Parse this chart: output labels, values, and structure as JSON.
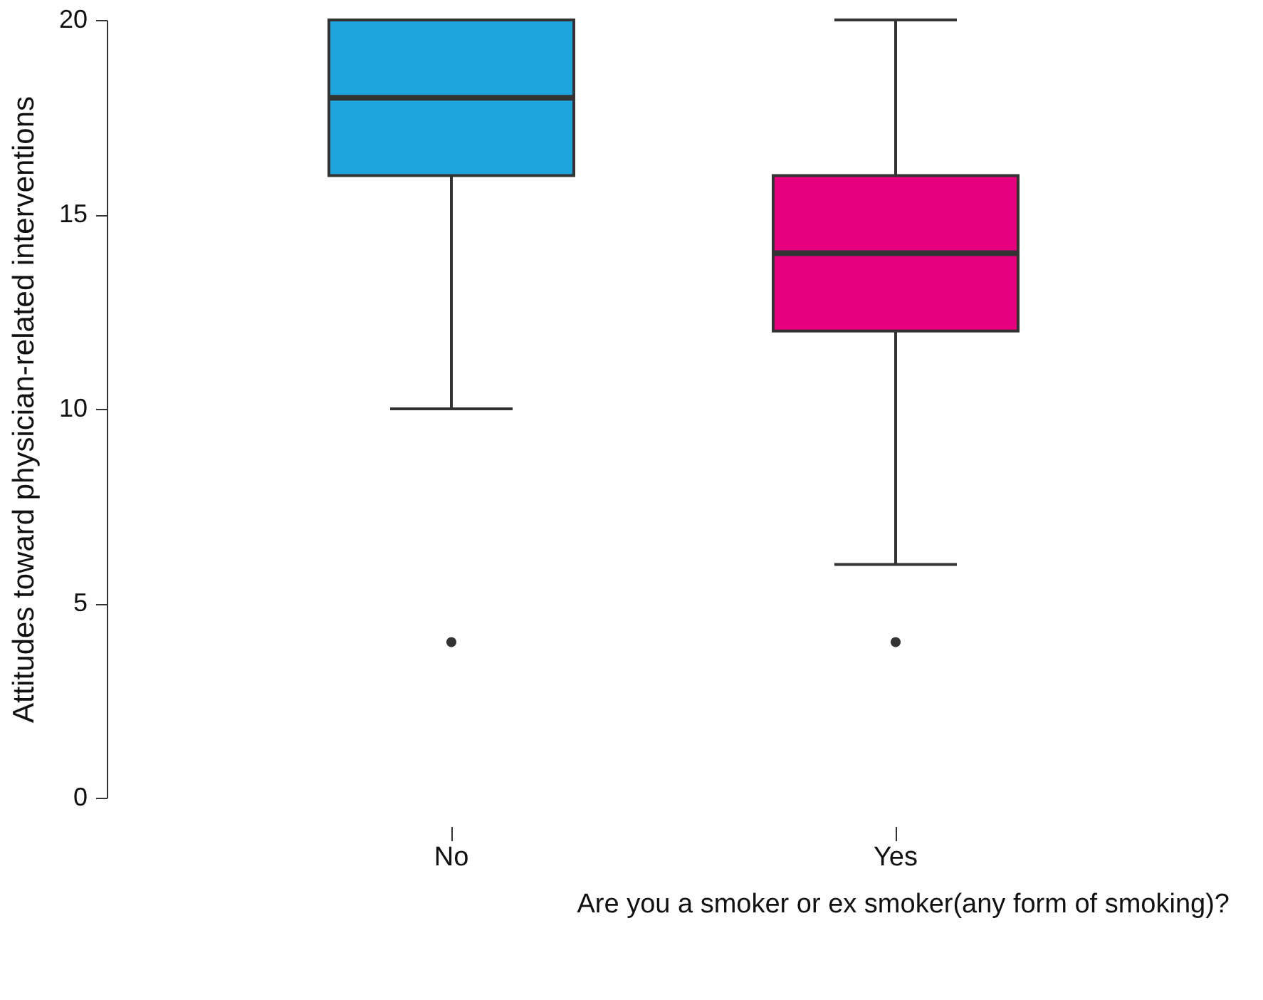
{
  "chart_data": {
    "type": "box",
    "xlabel": "Are you a smoker or ex smoker(any form of smoking)?",
    "ylabel": "Attitudes toward physician-related interventions",
    "categories": [
      "No",
      "Yes"
    ],
    "colors": [
      "#1fa4dd",
      "#e6007e"
    ],
    "boxes": [
      {
        "low": 10,
        "q1": 16,
        "median": 18,
        "q3": 20,
        "high": 20,
        "outliers": [
          4
        ]
      },
      {
        "low": 6,
        "q1": 12,
        "median": 14,
        "q3": 16,
        "high": 20,
        "outliers": [
          4
        ]
      }
    ],
    "ylim": [
      0,
      20
    ],
    "yticks": [
      0,
      5,
      10,
      15,
      20
    ],
    "grid": false
  }
}
